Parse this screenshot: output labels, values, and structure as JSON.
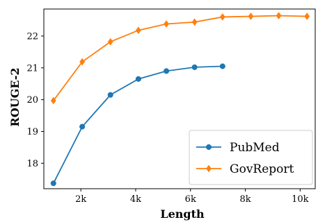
{
  "chart_data": {
    "type": "line",
    "title": "",
    "xlabel": "Length",
    "ylabel": "ROUGE-2",
    "xlim": [
      650,
      10550
    ],
    "ylim": [
      17.2,
      22.85
    ],
    "x_ticks": [
      2000,
      4000,
      6000,
      8000,
      10000
    ],
    "x_tick_labels": [
      "2k",
      "4k",
      "6k",
      "8k",
      "10k"
    ],
    "y_ticks": [
      18,
      19,
      20,
      21,
      22
    ],
    "y_tick_labels": [
      "18",
      "19",
      "20",
      "21",
      "22"
    ],
    "grid": false,
    "legend_position": "bottom-right",
    "series": [
      {
        "name": "PubMed",
        "color": "#1f77b4",
        "marker": "circle",
        "x": [
          1000,
          2050,
          3080,
          4100,
          5120,
          6150,
          7170
        ],
        "y": [
          17.37,
          19.15,
          20.15,
          20.65,
          20.9,
          21.02,
          21.05
        ]
      },
      {
        "name": "GovReport",
        "color": "#ff7f0e",
        "marker": "diamond",
        "x": [
          1000,
          2050,
          3080,
          4100,
          5120,
          6150,
          7170,
          8200,
          9220,
          10250
        ],
        "y": [
          19.97,
          21.19,
          21.82,
          22.18,
          22.38,
          22.44,
          22.6,
          22.62,
          22.64,
          22.62
        ]
      }
    ]
  }
}
